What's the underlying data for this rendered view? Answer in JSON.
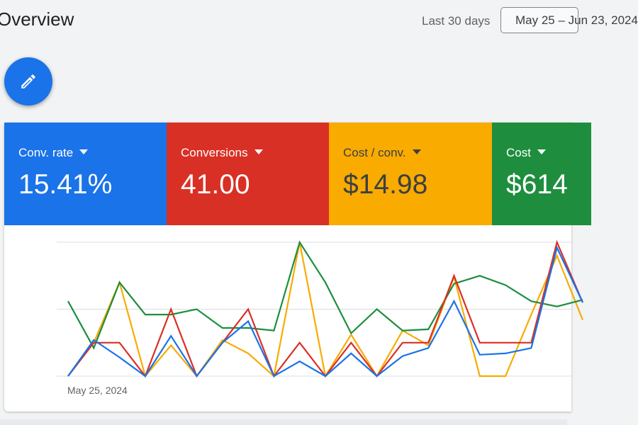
{
  "header": {
    "title": "Overview",
    "range_label": "Last 30 days",
    "date_button": "May 25 – Jun 23, 2024"
  },
  "fab": {
    "icon": "pencil-icon"
  },
  "metrics": [
    {
      "name": "Conv. rate",
      "value": "15.41%",
      "color": "#1a73e8"
    },
    {
      "name": "Conversions",
      "value": "41.00",
      "color": "#d93025"
    },
    {
      "name": "Cost / conv.",
      "value": "$14.98",
      "color": "#f9ab00"
    },
    {
      "name": "Cost",
      "value": "$614",
      "color": "#1e8e3e"
    }
  ],
  "chart_data": {
    "type": "line",
    "x_start_label": "May 25, 2024",
    "grid": true,
    "ylim": [
      0,
      10
    ],
    "series": [
      {
        "name": "Conv. rate",
        "color": "#1a73e8",
        "values": [
          0,
          2.7,
          1.4,
          0,
          3.0,
          0,
          2.5,
          4.1,
          0,
          1.1,
          0,
          1.7,
          0,
          1.5,
          2.1,
          5.6,
          1.6,
          1.7,
          2.1,
          9.6,
          5.5
        ]
      },
      {
        "name": "Conversions",
        "color": "#d93025",
        "values": [
          0,
          2.5,
          2.5,
          0,
          5.0,
          0,
          2.5,
          5.0,
          0,
          2.5,
          0,
          2.5,
          0,
          2.5,
          2.5,
          7.5,
          2.5,
          2.5,
          2.5,
          10,
          5.5
        ]
      },
      {
        "name": "Cost / conv.",
        "color": "#f9ab00",
        "values": [
          0,
          2.5,
          7.0,
          0,
          2.3,
          0,
          2.7,
          1.7,
          0,
          10,
          0,
          3.1,
          0,
          3.4,
          2.3,
          7.4,
          0,
          0,
          4.6,
          9.0,
          4.2
        ]
      },
      {
        "name": "Cost",
        "color": "#1e8e3e",
        "values": [
          5.6,
          2.1,
          7.0,
          4.6,
          4.6,
          5.0,
          3.6,
          3.6,
          3.4,
          10,
          7.0,
          3.2,
          5.0,
          3.4,
          3.5,
          6.9,
          7.5,
          6.8,
          5.6,
          5.2,
          5.7
        ]
      }
    ]
  }
}
